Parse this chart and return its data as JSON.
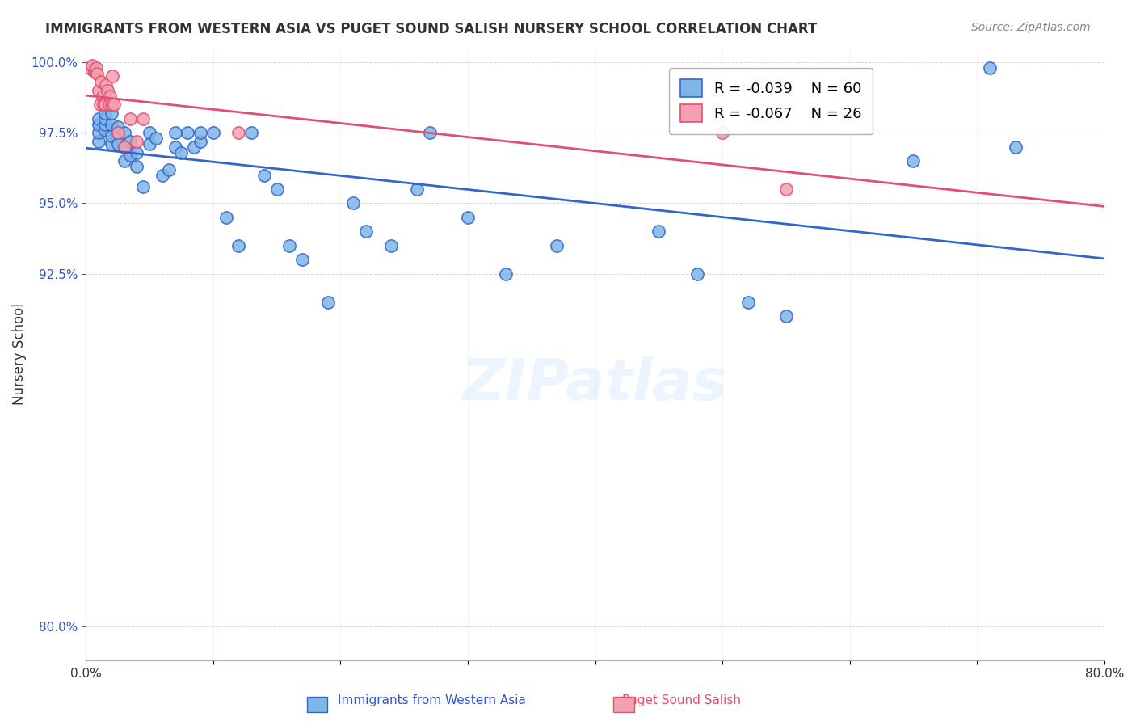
{
  "title": "IMMIGRANTS FROM WESTERN ASIA VS PUGET SOUND SALISH NURSERY SCHOOL CORRELATION CHART",
  "source": "Source: ZipAtlas.com",
  "xlabel_bottom": "",
  "ylabel": "Nursery School",
  "legend_blue_r": "R = -0.039",
  "legend_blue_n": "N = 60",
  "legend_pink_r": "R = -0.067",
  "legend_pink_n": "N = 26",
  "xlim": [
    0.0,
    0.8
  ],
  "ylim": [
    0.788,
    1.005
  ],
  "yticks": [
    0.8,
    0.925,
    0.95,
    0.975,
    1.0
  ],
  "ytick_labels": [
    "80.0%",
    "92.5%",
    "95.0%",
    "97.5%",
    "100.0%"
  ],
  "xticks": [
    0.0,
    0.1,
    0.2,
    0.3,
    0.4,
    0.5,
    0.6,
    0.7,
    0.8
  ],
  "xtick_labels": [
    "0.0%",
    "",
    "",
    "",
    "",
    "",
    "",
    "",
    "80.0%"
  ],
  "blue_color": "#7EB6E8",
  "pink_color": "#F4A0B0",
  "blue_line_color": "#3366CC",
  "pink_line_color": "#E05070",
  "watermark": "ZIPatlas",
  "blue_x": [
    0.005,
    0.01,
    0.01,
    0.01,
    0.01,
    0.015,
    0.015,
    0.015,
    0.015,
    0.02,
    0.02,
    0.02,
    0.02,
    0.025,
    0.025,
    0.025,
    0.03,
    0.03,
    0.03,
    0.035,
    0.035,
    0.04,
    0.04,
    0.045,
    0.05,
    0.05,
    0.055,
    0.06,
    0.065,
    0.07,
    0.07,
    0.075,
    0.08,
    0.085,
    0.09,
    0.09,
    0.1,
    0.11,
    0.12,
    0.13,
    0.14,
    0.15,
    0.16,
    0.17,
    0.19,
    0.21,
    0.22,
    0.24,
    0.26,
    0.27,
    0.3,
    0.33,
    0.37,
    0.45,
    0.48,
    0.52,
    0.55,
    0.65,
    0.71,
    0.73
  ],
  "blue_y": [
    0.9975,
    0.972,
    0.975,
    0.978,
    0.98,
    0.976,
    0.978,
    0.98,
    0.982,
    0.971,
    0.974,
    0.978,
    0.982,
    0.971,
    0.975,
    0.977,
    0.965,
    0.97,
    0.975,
    0.967,
    0.972,
    0.963,
    0.968,
    0.956,
    0.971,
    0.975,
    0.973,
    0.96,
    0.962,
    0.97,
    0.975,
    0.968,
    0.975,
    0.97,
    0.972,
    0.975,
    0.975,
    0.945,
    0.935,
    0.975,
    0.96,
    0.955,
    0.935,
    0.93,
    0.915,
    0.95,
    0.94,
    0.935,
    0.955,
    0.975,
    0.945,
    0.925,
    0.935,
    0.94,
    0.925,
    0.915,
    0.91,
    0.965,
    0.998,
    0.97
  ],
  "pink_x": [
    0.003,
    0.005,
    0.007,
    0.008,
    0.009,
    0.01,
    0.011,
    0.012,
    0.013,
    0.014,
    0.015,
    0.016,
    0.017,
    0.018,
    0.019,
    0.02,
    0.021,
    0.022,
    0.025,
    0.03,
    0.035,
    0.04,
    0.045,
    0.12,
    0.5,
    0.55
  ],
  "pink_y": [
    0.998,
    0.999,
    0.997,
    0.998,
    0.996,
    0.99,
    0.985,
    0.993,
    0.988,
    0.985,
    0.985,
    0.992,
    0.99,
    0.985,
    0.988,
    0.985,
    0.995,
    0.985,
    0.975,
    0.97,
    0.98,
    0.972,
    0.98,
    0.975,
    0.975,
    0.955
  ]
}
